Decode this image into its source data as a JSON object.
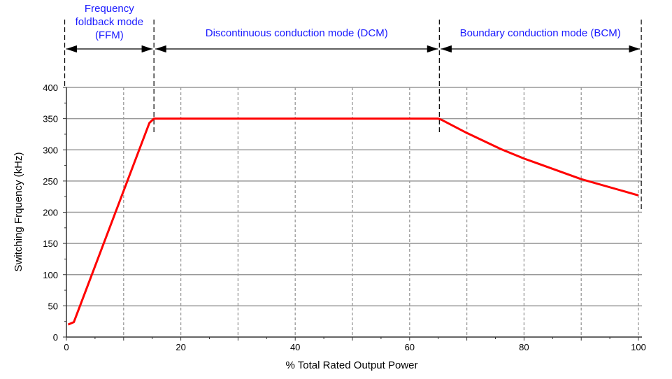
{
  "chart_data": {
    "type": "line",
    "title": "",
    "xlabel": "% Total Rated Output Power",
    "ylabel": "Switching Frquency (kHz)",
    "xlim": [
      0,
      100
    ],
    "ylim": [
      0,
      400
    ],
    "x_ticks": [
      0,
      20,
      40,
      60,
      80,
      100
    ],
    "y_ticks": [
      0,
      50,
      100,
      150,
      200,
      250,
      300,
      350,
      400
    ],
    "grid": true,
    "series": [
      {
        "color": "#ff0000",
        "x": [
          0.3,
          1.3,
          14.5,
          15.3,
          65.0,
          65.6,
          70,
          76,
          80,
          90,
          100
        ],
        "y": [
          20,
          24,
          343,
          350,
          350,
          348,
          327,
          301,
          286,
          253,
          227
        ]
      }
    ],
    "regions": [
      {
        "label": "Frequency foldback mode (FFM)",
        "lines": [
          "Frequency",
          "foldback mode",
          "(FFM)"
        ],
        "from": -0.3,
        "to": 15.3
      },
      {
        "label": "Discontinuous conduction mode (DCM)",
        "lines": [
          "Discontinuous conduction mode (DCM)"
        ],
        "from": 15.3,
        "to": 65.2
      },
      {
        "label": "Boundary conduction mode (BCM)",
        "lines": [
          "Boundary conduction mode (BCM)"
        ],
        "from": 65.2,
        "to": 100.5
      }
    ],
    "region_label_color": "#1a1aff"
  }
}
